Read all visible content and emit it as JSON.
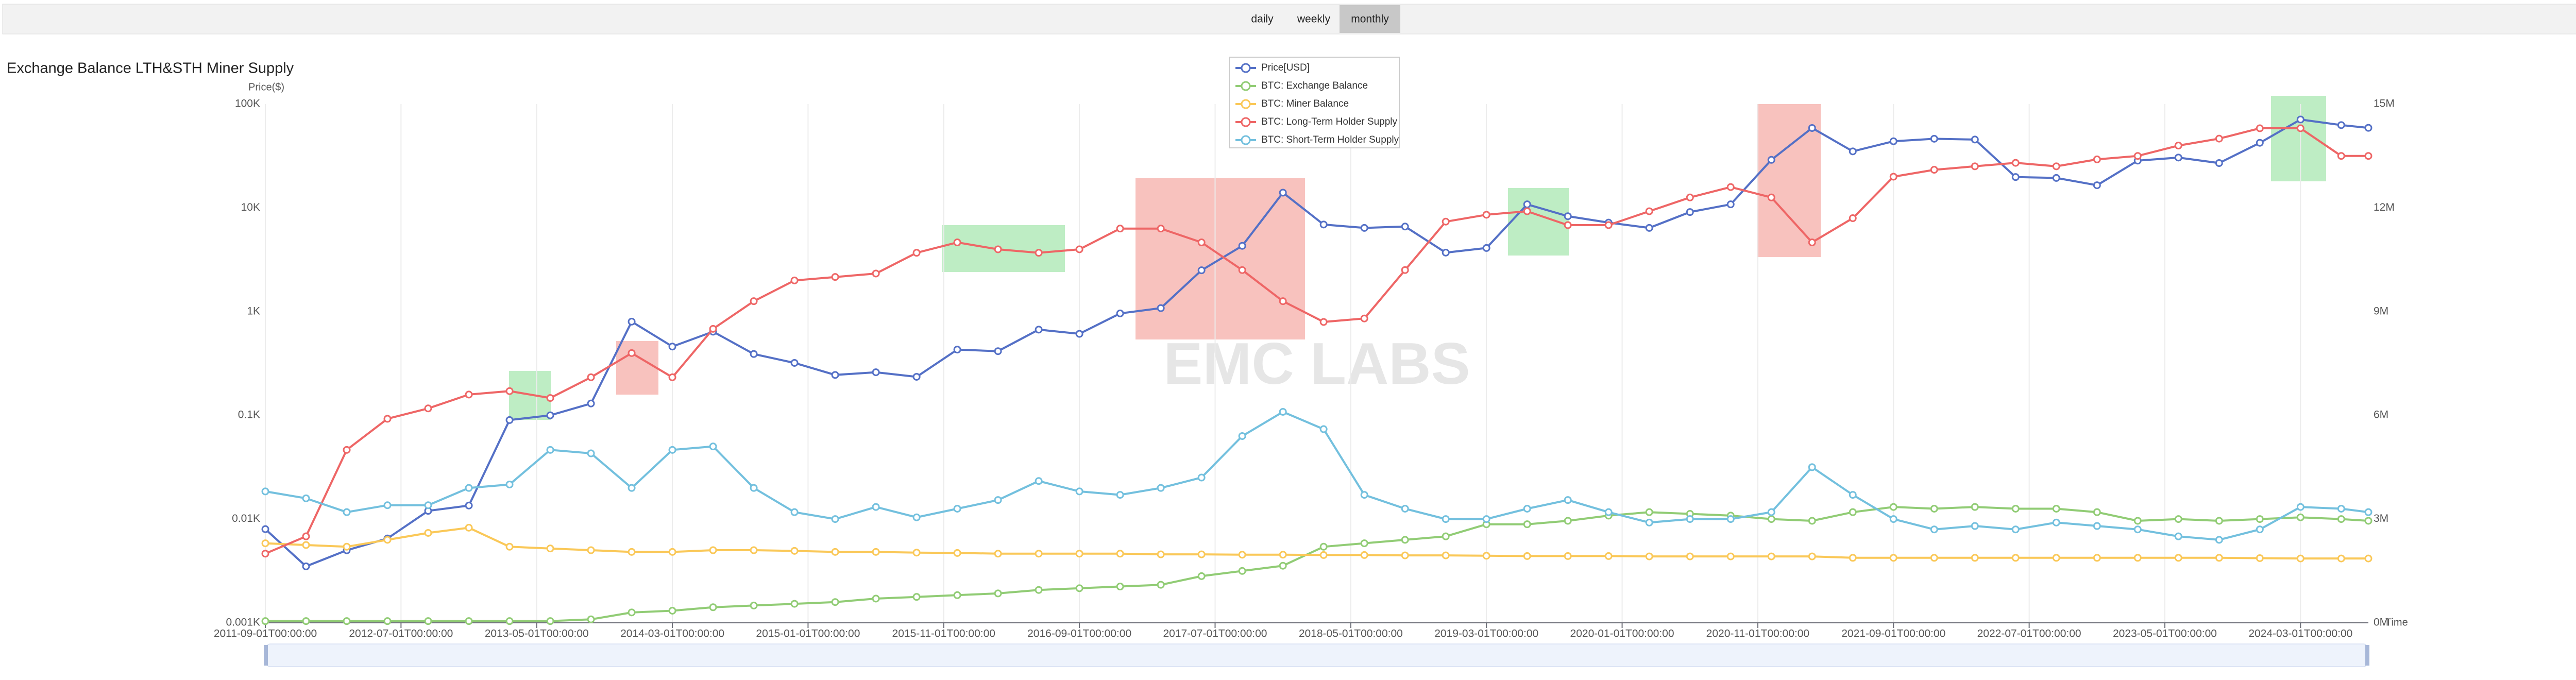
{
  "tabs": [
    "daily",
    "weekly",
    "monthly"
  ],
  "selected_tab": 2,
  "chart_data": {
    "type": "line",
    "title": "Exchange Balance LTH&STH Miner Supply",
    "y_axis_label": "Price($)",
    "x_axis_label": "Time",
    "watermark": "EMC LABS",
    "ylog": true,
    "grid": "x",
    "legend": "top",
    "xlim": [
      "2011-09-01",
      "2024-08-01"
    ],
    "xticks": [
      "2011-09-01T00:00:00",
      "2012-07-01T00:00:00",
      "2013-05-01T00:00:00",
      "2014-03-01T00:00:00",
      "2015-01-01T00:00:00",
      "2015-11-01T00:00:00",
      "2016-09-01T00:00:00",
      "2017-07-01T00:00:00",
      "2018-05-01T00:00:00",
      "2019-03-01T00:00:00",
      "2020-01-01T00:00:00",
      "2020-11-01T00:00:00",
      "2021-09-01T00:00:00",
      "2022-07-01T00:00:00",
      "2023-05-01T00:00:00",
      "2024-03-01T00:00:00"
    ],
    "ylim": [
      1,
      100000
    ],
    "yticks": [
      {
        "value": 1,
        "label": "0.001K"
      },
      {
        "value": 10,
        "label": "0.01K"
      },
      {
        "value": 100,
        "label": "0.1K"
      },
      {
        "value": 1000,
        "label": "1K"
      },
      {
        "value": 10000,
        "label": "10K"
      },
      {
        "value": 100000,
        "label": "100K"
      }
    ],
    "y2lim": [
      0,
      15
    ],
    "y2ticks": [
      {
        "value": 0,
        "label": "0M"
      },
      {
        "value": 3,
        "label": "3M"
      },
      {
        "value": 6,
        "label": "6M"
      },
      {
        "value": 9,
        "label": "9M"
      },
      {
        "value": 12,
        "label": "12M"
      },
      {
        "value": 15,
        "label": "15M"
      }
    ],
    "x": [
      "2011-09-01",
      "2011-12-01",
      "2012-03-01",
      "2012-06-01",
      "2012-09-01",
      "2012-12-01",
      "2013-03-01",
      "2013-06-01",
      "2013-09-01",
      "2013-12-01",
      "2014-03-01",
      "2014-06-01",
      "2014-09-01",
      "2014-12-01",
      "2015-03-01",
      "2015-06-01",
      "2015-09-01",
      "2015-12-01",
      "2016-03-01",
      "2016-06-01",
      "2016-09-01",
      "2016-12-01",
      "2017-03-01",
      "2017-06-01",
      "2017-09-01",
      "2017-12-01",
      "2018-03-01",
      "2018-06-01",
      "2018-09-01",
      "2018-12-01",
      "2019-03-01",
      "2019-06-01",
      "2019-09-01",
      "2019-12-01",
      "2020-03-01",
      "2020-06-01",
      "2020-09-01",
      "2020-12-01",
      "2021-03-01",
      "2021-06-01",
      "2021-09-01",
      "2021-12-01",
      "2022-03-01",
      "2022-06-01",
      "2022-09-01",
      "2022-12-01",
      "2023-03-01",
      "2023-06-01",
      "2023-09-01",
      "2023-12-01",
      "2024-03-01",
      "2024-06-01",
      "2024-08-01"
    ],
    "series": [
      {
        "name": "Price[USD]",
        "color": "#5470c6",
        "axis": "y",
        "values": [
          8,
          3.5,
          5,
          6.5,
          12,
          13.5,
          90,
          100,
          130,
          800,
          460,
          640,
          390,
          320,
          245,
          260,
          235,
          430,
          415,
          670,
          610,
          960,
          1080,
          2500,
          4300,
          14000,
          6900,
          6400,
          6600,
          3700,
          4100,
          10800,
          8300,
          7200,
          6400,
          9100,
          10800,
          29000,
          58800,
          35000,
          43800,
          46300,
          45500,
          19800,
          19400,
          16500,
          28500,
          30500,
          27000,
          42300,
          71000,
          62700,
          59000
        ]
      },
      {
        "name": "BTC: Exchange Balance",
        "color": "#91cc75",
        "axis": "y2",
        "values": [
          0.05,
          0.05,
          0.05,
          0.05,
          0.05,
          0.05,
          0.05,
          0.05,
          0.1,
          0.3,
          0.35,
          0.45,
          0.5,
          0.55,
          0.6,
          0.7,
          0.75,
          0.8,
          0.85,
          0.95,
          1.0,
          1.05,
          1.1,
          1.35,
          1.5,
          1.65,
          2.2,
          2.3,
          2.4,
          2.5,
          2.85,
          2.85,
          2.95,
          3.1,
          3.2,
          3.15,
          3.1,
          3.0,
          2.95,
          3.2,
          3.35,
          3.3,
          3.35,
          3.3,
          3.3,
          3.2,
          2.95,
          3.0,
          2.95,
          3.0,
          3.05,
          3.0,
          2.95
        ]
      },
      {
        "name": "BTC: Miner Balance",
        "color": "#fac858",
        "axis": "y2",
        "values": [
          2.3,
          2.25,
          2.2,
          2.4,
          2.6,
          2.75,
          2.2,
          2.15,
          2.1,
          2.05,
          2.05,
          2.1,
          2.1,
          2.08,
          2.05,
          2.05,
          2.03,
          2.02,
          2.0,
          2.0,
          2.0,
          2.0,
          1.98,
          1.98,
          1.97,
          1.97,
          1.96,
          1.96,
          1.95,
          1.95,
          1.94,
          1.93,
          1.93,
          1.93,
          1.92,
          1.92,
          1.92,
          1.92,
          1.92,
          1.88,
          1.88,
          1.88,
          1.88,
          1.88,
          1.88,
          1.88,
          1.88,
          1.88,
          1.88,
          1.87,
          1.86,
          1.86,
          1.86
        ]
      },
      {
        "name": "BTC: Long-Term Holder Supply",
        "color": "#ee6666",
        "axis": "y2",
        "values": [
          2.0,
          2.5,
          5.0,
          5.9,
          6.2,
          6.6,
          6.7,
          6.5,
          7.1,
          7.8,
          7.1,
          8.5,
          9.3,
          9.9,
          10.0,
          10.1,
          10.7,
          11.0,
          10.8,
          10.7,
          10.8,
          11.4,
          11.4,
          11.0,
          10.2,
          9.3,
          8.7,
          8.8,
          10.2,
          11.6,
          11.8,
          11.9,
          11.5,
          11.5,
          11.9,
          12.3,
          12.6,
          12.3,
          11.0,
          11.7,
          12.9,
          13.1,
          13.2,
          13.3,
          13.2,
          13.4,
          13.5,
          13.8,
          14.0,
          14.3,
          14.3,
          13.5,
          13.5
        ]
      },
      {
        "name": "BTC: Short-Term Holder Supply",
        "color": "#73c0de",
        "axis": "y2",
        "values": [
          3.8,
          3.6,
          3.2,
          3.4,
          3.4,
          3.9,
          4.0,
          5.0,
          4.9,
          3.9,
          5.0,
          5.1,
          3.9,
          3.2,
          3.0,
          3.35,
          3.05,
          3.3,
          3.55,
          4.1,
          3.8,
          3.7,
          3.9,
          4.2,
          5.4,
          6.1,
          5.6,
          3.7,
          3.3,
          3.0,
          3.0,
          3.3,
          3.55,
          3.2,
          2.9,
          3.0,
          3.0,
          3.2,
          4.5,
          3.7,
          3.0,
          2.7,
          2.8,
          2.7,
          2.9,
          2.8,
          2.7,
          2.5,
          2.4,
          2.7,
          3.35,
          3.3,
          3.2
        ]
      }
    ]
  }
}
